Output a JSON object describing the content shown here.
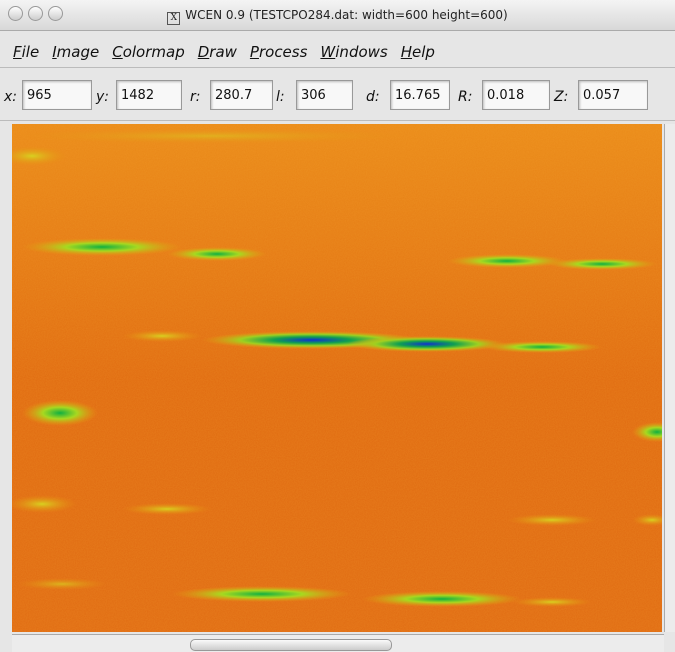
{
  "window": {
    "title": "WCEN 0.9 (TESTCPO284.dat: width=600 height=600)"
  },
  "menu": [
    "File",
    "Image",
    "Colormap",
    "Draw",
    "Process",
    "Windows",
    "Help"
  ],
  "fields": [
    {
      "label": "x:",
      "value": "965"
    },
    {
      "label": "y:",
      "value": "1482"
    },
    {
      "label": "r:",
      "value": "280.7"
    },
    {
      "label": "l:",
      "value": "306"
    },
    {
      "label": "d:",
      "value": "16.765"
    },
    {
      "label": "R:",
      "value": "0.018"
    },
    {
      "label": "Z:",
      "value": "0.057"
    }
  ]
}
